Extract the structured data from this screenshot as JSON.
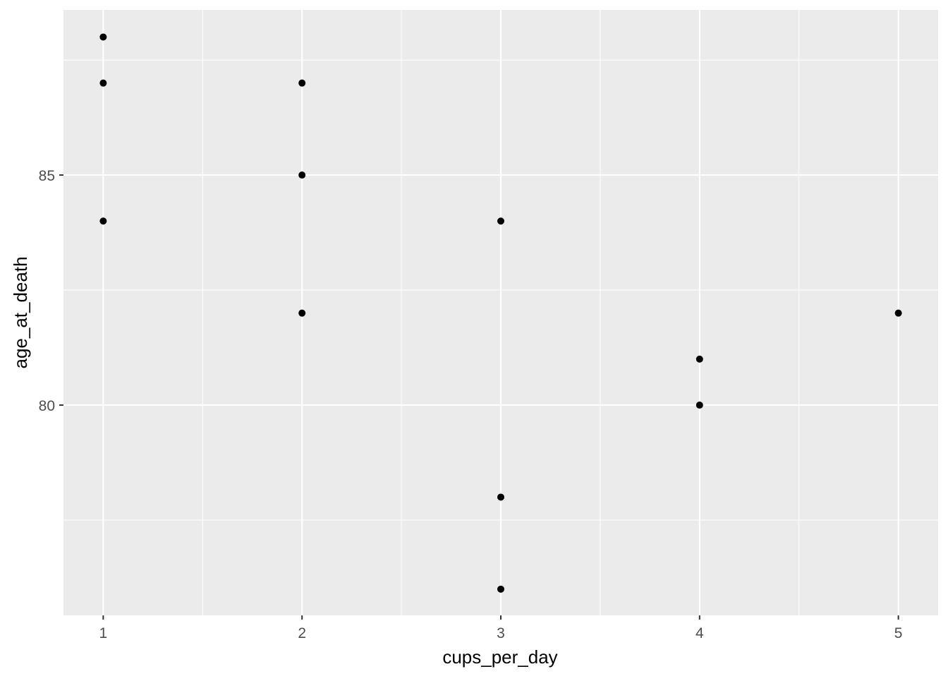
{
  "chart_data": {
    "type": "scatter",
    "title": "",
    "xlabel": "cups_per_day",
    "ylabel": "age_at_death",
    "xlim": [
      0.8,
      5.2
    ],
    "ylim": [
      75.43,
      88.59
    ],
    "x_ticks": [
      1,
      2,
      3,
      4,
      5
    ],
    "y_ticks": [
      80,
      85
    ],
    "grid": true,
    "background": "#EBEBEB",
    "grid_color": "#FFFFFF",
    "point_color": "#000000",
    "points": [
      {
        "x": 1,
        "y": 88
      },
      {
        "x": 1,
        "y": 87
      },
      {
        "x": 1,
        "y": 84
      },
      {
        "x": 2,
        "y": 87
      },
      {
        "x": 2,
        "y": 85
      },
      {
        "x": 2,
        "y": 82
      },
      {
        "x": 3,
        "y": 84
      },
      {
        "x": 3,
        "y": 78
      },
      {
        "x": 3,
        "y": 76
      },
      {
        "x": 4,
        "y": 81
      },
      {
        "x": 4,
        "y": 80
      },
      {
        "x": 5,
        "y": 82
      }
    ]
  }
}
